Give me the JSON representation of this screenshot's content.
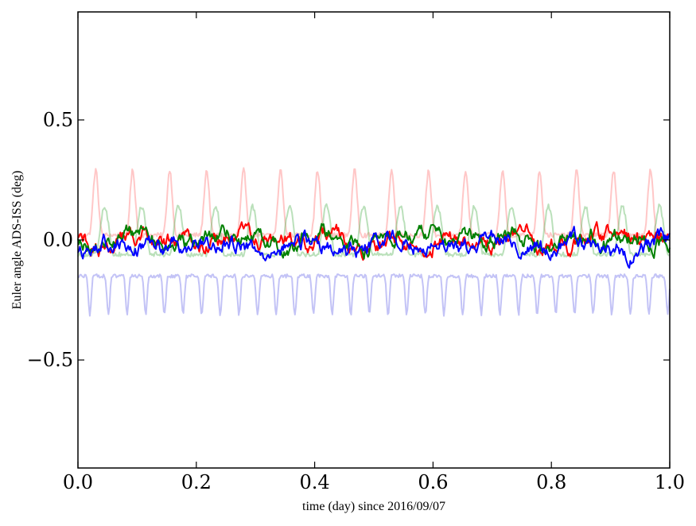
{
  "chart_data": {
    "type": "line",
    "title": "",
    "xlabel": "time (day) since 2016/09/07",
    "ylabel": "Euler angle ADS-ISS (deg)",
    "xlim": [
      0.0,
      1.0
    ],
    "ylim": [
      -0.95,
      0.95
    ],
    "xticks": [
      0.0,
      0.2,
      0.4,
      0.6,
      0.8,
      1.0
    ],
    "xtick_labels": [
      "0.0",
      "0.2",
      "0.4",
      "0.6",
      "0.8",
      "1.0"
    ],
    "yticks": [
      -0.5,
      0.0,
      0.5
    ],
    "ytick_labels": [
      "−0.5",
      "0.0",
      "0.5"
    ],
    "grid": false,
    "legend": "none",
    "series": [
      {
        "color": "#ff9999",
        "opacity": 0.55,
        "width": 2,
        "kind": "periodic",
        "base": 0.02,
        "amp": 0.27,
        "period": 0.0625,
        "phase": 0.03,
        "sharp": 5,
        "noise": 0.02,
        "approx_range": [
          -0.05,
          0.34
        ]
      },
      {
        "color": "#66bb66",
        "opacity": 0.45,
        "width": 2,
        "kind": "periodic",
        "base": -0.06,
        "amp": 0.2,
        "period": 0.0625,
        "phase": 0.045,
        "sharp": 2,
        "noise": 0.02,
        "approx_range": [
          -0.1,
          0.14
        ]
      },
      {
        "color": "#8888ee",
        "opacity": 0.5,
        "width": 2,
        "kind": "periodic-inverted",
        "base": -0.15,
        "amp": 0.16,
        "period": 0.0315,
        "phase": 0.02,
        "sharp": 4,
        "noise": 0.015,
        "approx_range": [
          -0.33,
          -0.09
        ]
      },
      {
        "color": "#ff0000",
        "opacity": 1.0,
        "width": 2,
        "kind": "noisy",
        "base": 0.0,
        "noise": 0.03,
        "approx_range": [
          -0.07,
          0.08
        ]
      },
      {
        "color": "#008000",
        "opacity": 1.0,
        "width": 2,
        "kind": "noisy",
        "base": 0.0,
        "noise": 0.03,
        "approx_range": [
          -0.08,
          0.08
        ]
      },
      {
        "color": "#0000ff",
        "opacity": 1.0,
        "width": 2,
        "kind": "noisy",
        "base": -0.02,
        "noise": 0.03,
        "approx_range": [
          -0.08,
          0.06
        ]
      }
    ]
  }
}
